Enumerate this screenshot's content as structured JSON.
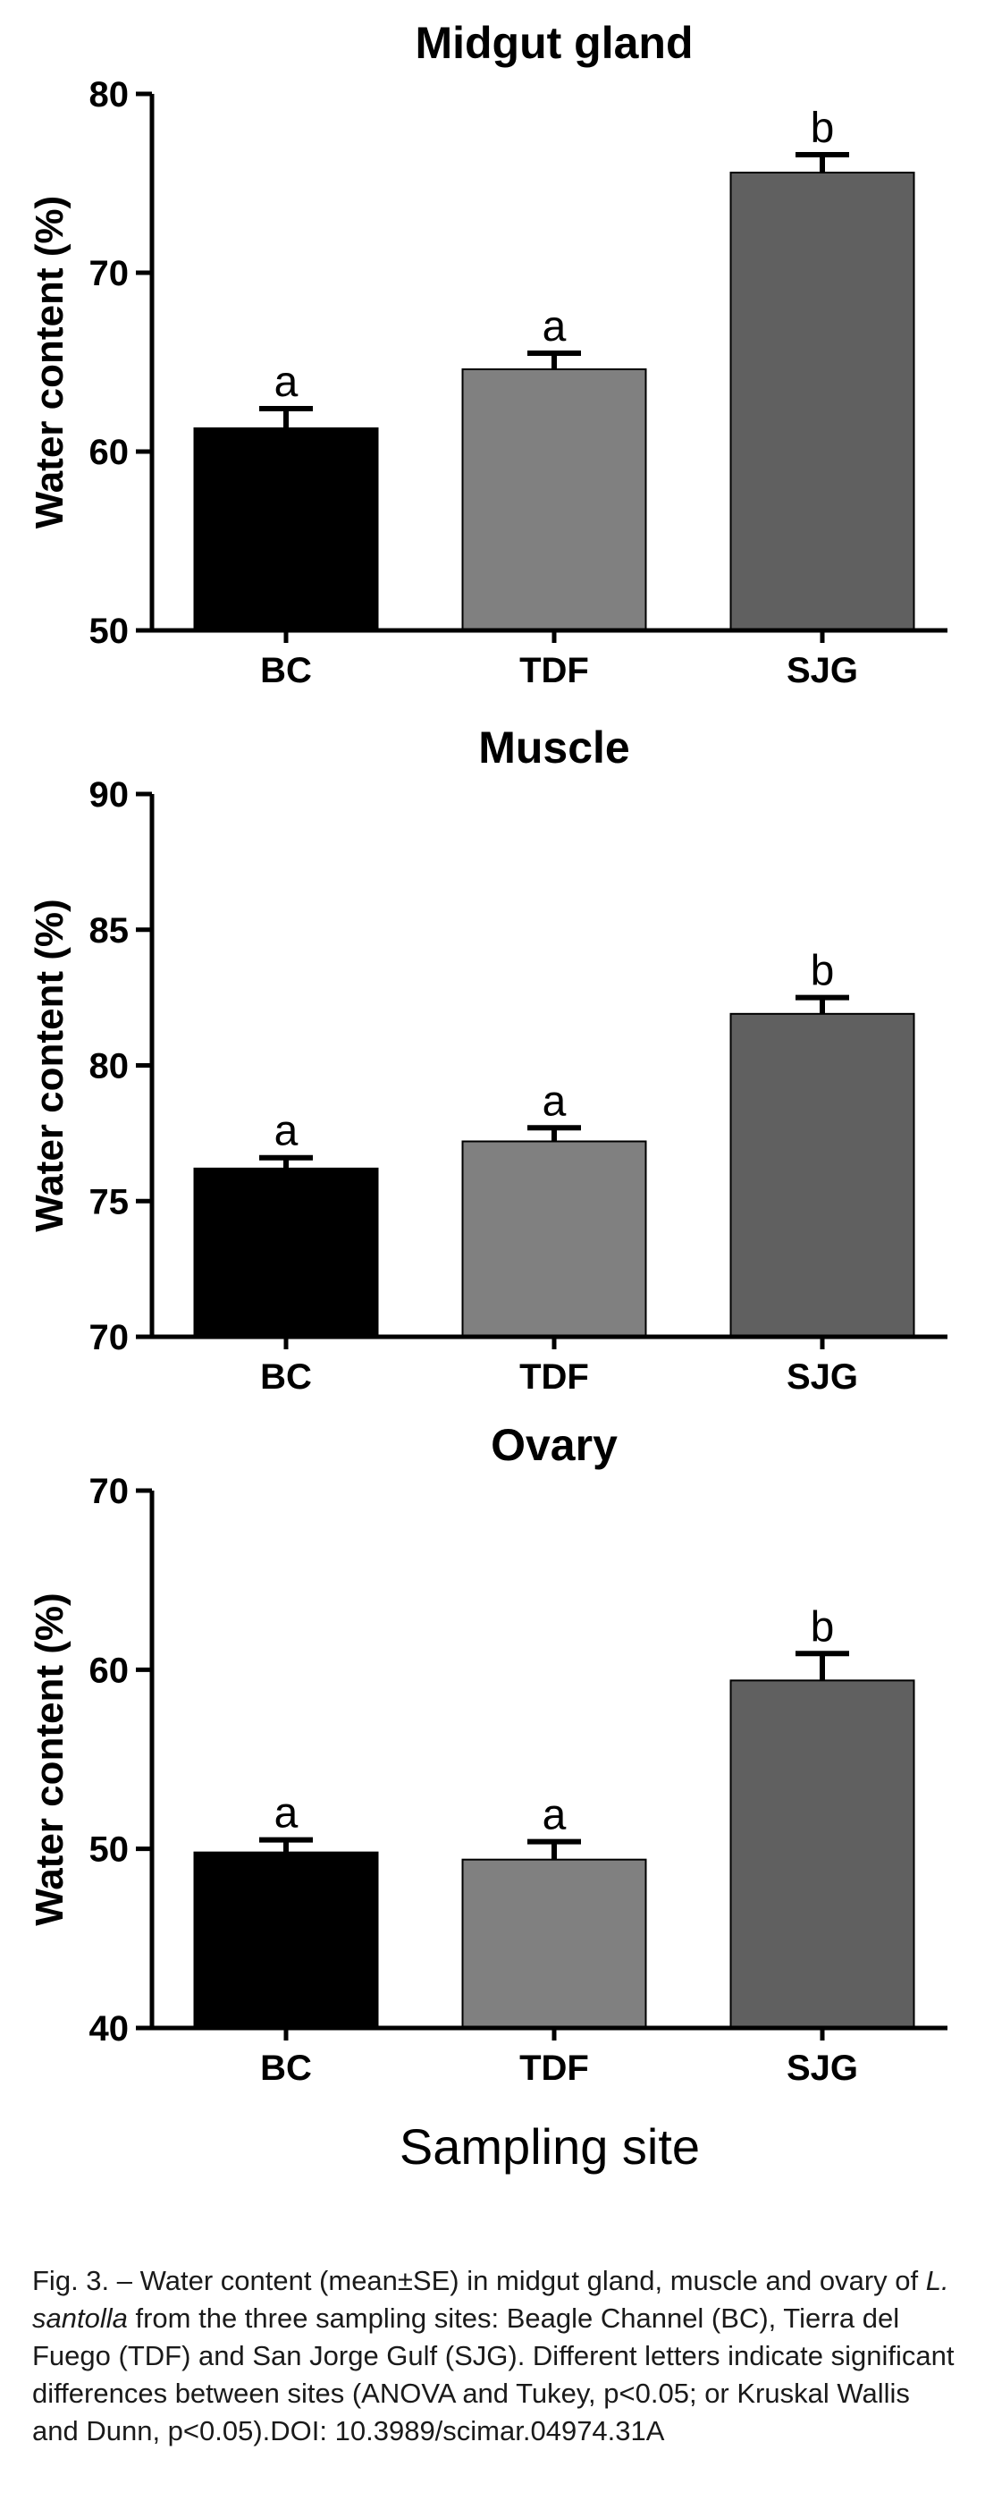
{
  "chart_data": [
    {
      "type": "bar",
      "title": "Midgut gland",
      "ylabel": "Water content (%)",
      "xlabel": "",
      "categories": [
        "BC",
        "TDF",
        "SJG"
      ],
      "values": [
        61.3,
        64.6,
        75.6
      ],
      "errors": [
        1.1,
        0.9,
        1.0
      ],
      "significance": [
        "a",
        "a",
        "b"
      ],
      "ylim": [
        50,
        80
      ],
      "yticks": [
        "50",
        "60",
        "70",
        "80"
      ],
      "colors": [
        "#000000",
        "#808080",
        "#606060"
      ]
    },
    {
      "type": "bar",
      "title": "Muscle",
      "ylabel": "Water content (%)",
      "xlabel": "",
      "categories": [
        "BC",
        "TDF",
        "SJG"
      ],
      "values": [
        76.2,
        77.2,
        81.9
      ],
      "errors": [
        0.4,
        0.5,
        0.6
      ],
      "significance": [
        "a",
        "a",
        "b"
      ],
      "ylim": [
        70,
        90
      ],
      "yticks": [
        "70",
        "75",
        "80",
        "85",
        "90"
      ],
      "colors": [
        "#000000",
        "#808080",
        "#606060"
      ]
    },
    {
      "type": "bar",
      "title": "Ovary",
      "ylabel": "Water content (%)",
      "xlabel": "Sampling site",
      "categories": [
        "BC",
        "TDF",
        "SJG"
      ],
      "values": [
        49.8,
        49.4,
        59.4
      ],
      "errors": [
        0.7,
        1.0,
        1.5
      ],
      "significance": [
        "a",
        "a",
        "b"
      ],
      "ylim": [
        40,
        70
      ],
      "yticks": [
        "40",
        "50",
        "60",
        "70"
      ],
      "colors": [
        "#000000",
        "#808080",
        "#606060"
      ]
    }
  ],
  "caption": {
    "prefix": "Fig. 3. – Water content (mean±SE) in midgut gland, muscle and ovary of ",
    "species": "L. santolla",
    "suffix": " from the three sampling sites: Beagle Channel (BC), Tierra del Fuego (TDF) and San Jorge Gulf (SJG). Different letters indicate significant differences between sites (ANOVA and Tukey, p<0.05; or Kruskal Wallis and Dunn, p<0.05).DOI: 10.3989/scimar.04974.31A"
  }
}
